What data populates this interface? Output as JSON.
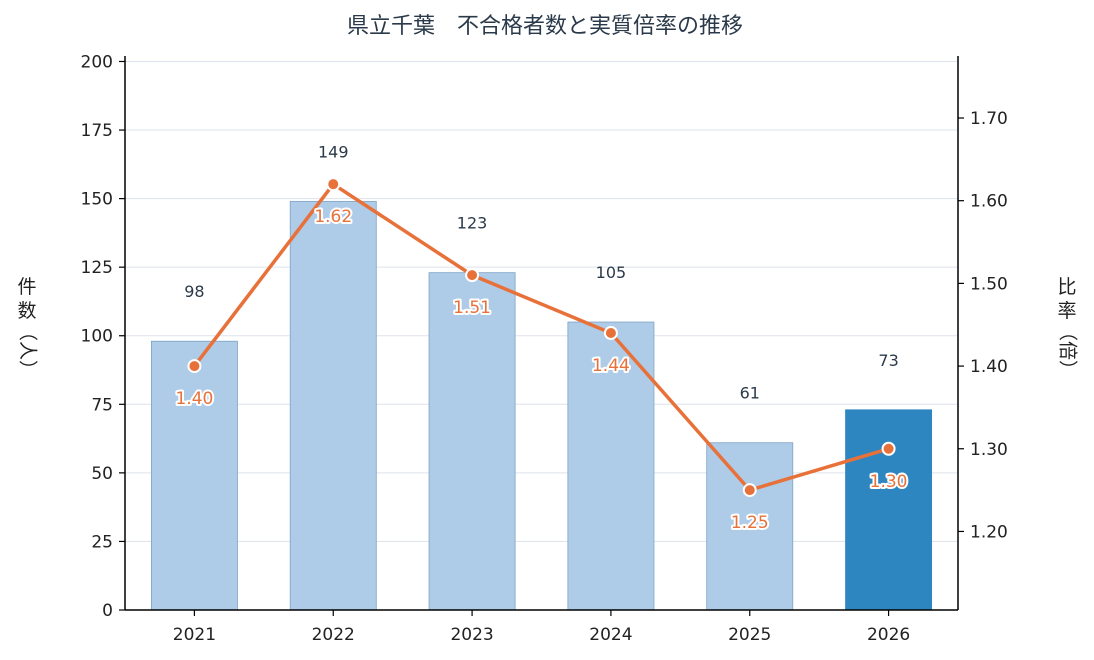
{
  "chart_data": {
    "type": "bar",
    "title": "県立千葉　不合格者数と実質倍率の推移",
    "categories": [
      "2021",
      "2022",
      "2023",
      "2024",
      "2025",
      "2026"
    ],
    "series": [
      {
        "type": "bar",
        "axis": "left",
        "values": [
          98,
          149,
          123,
          105,
          61,
          73
        ]
      },
      {
        "type": "line",
        "axis": "right",
        "values": [
          1.4,
          1.62,
          1.51,
          1.44,
          1.25,
          1.3
        ]
      }
    ],
    "bar_labels": [
      "98",
      "149",
      "123",
      "105",
      "61",
      "73"
    ],
    "line_labels": [
      "1.40",
      "1.62",
      "1.51",
      "1.44",
      "1.25",
      "1.30"
    ],
    "y_left": {
      "label": [
        "件",
        "数",
        "（人）"
      ],
      "lim": [
        0,
        202
      ],
      "ticks": [
        0,
        25,
        50,
        75,
        100,
        125,
        150,
        175,
        200
      ],
      "tick_labels": [
        "0",
        "25",
        "50",
        "75",
        "100",
        "125",
        "150",
        "175",
        "200"
      ]
    },
    "y_right": {
      "label": [
        "比",
        "率",
        "（倍）"
      ],
      "lim": [
        1.105,
        1.775
      ],
      "ticks": [
        1.2,
        1.3,
        1.4,
        1.5,
        1.6,
        1.7
      ],
      "tick_labels": [
        "1.20",
        "1.30",
        "1.40",
        "1.50",
        "1.60",
        "1.70"
      ]
    },
    "grid": true,
    "highlight_index": 5,
    "colors": {
      "bar": "#aecbe8",
      "bar_edge": "#7fa3c4",
      "bar_highlight": "#2e86c1",
      "line": "#e8713a",
      "grid": "#dde3ec"
    }
  }
}
